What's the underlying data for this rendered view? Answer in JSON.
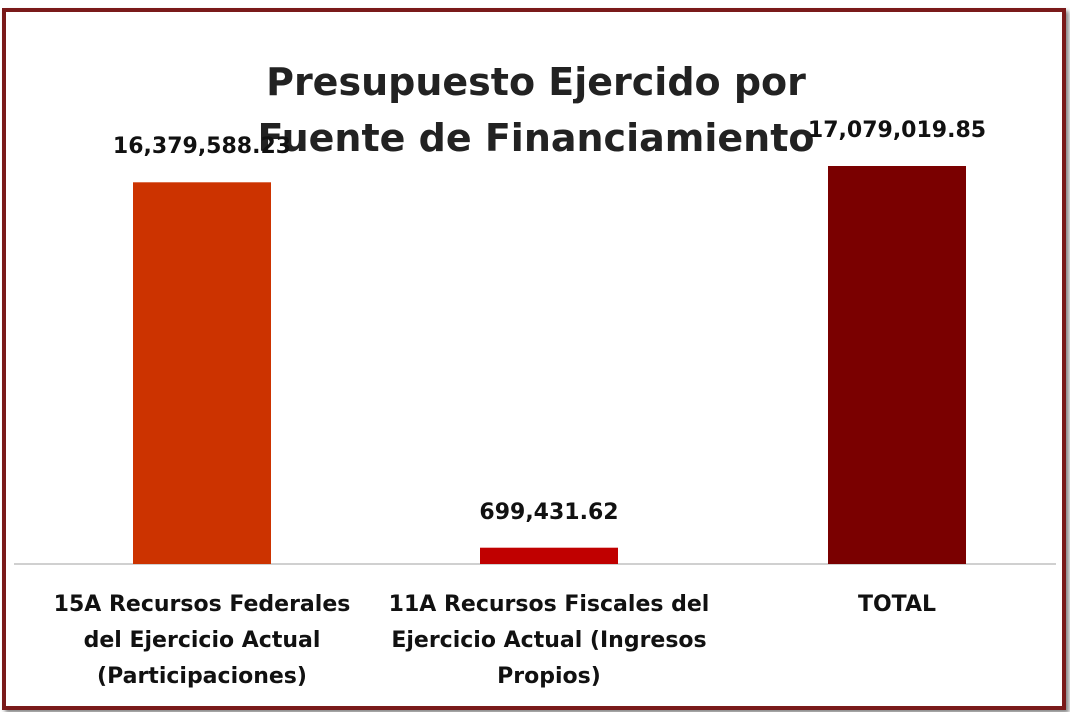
{
  "chart_data": {
    "type": "bar",
    "title": "Presupuesto Ejercido por Fuente de Financiamiento",
    "categories": [
      "15A Recursos Federales del Ejercicio Actual (Participaciones)",
      "11A Recursos Fiscales del Ejercicio Actual (Ingresos Propios)",
      "TOTAL"
    ],
    "values": [
      16379588.23,
      699431.62,
      17079019.85
    ],
    "value_labels": [
      "16,379,588.23",
      "699,431.62",
      "17,079,019.85"
    ],
    "colors": [
      "#cc3300",
      "#c00000",
      "#7a0000"
    ]
  }
}
